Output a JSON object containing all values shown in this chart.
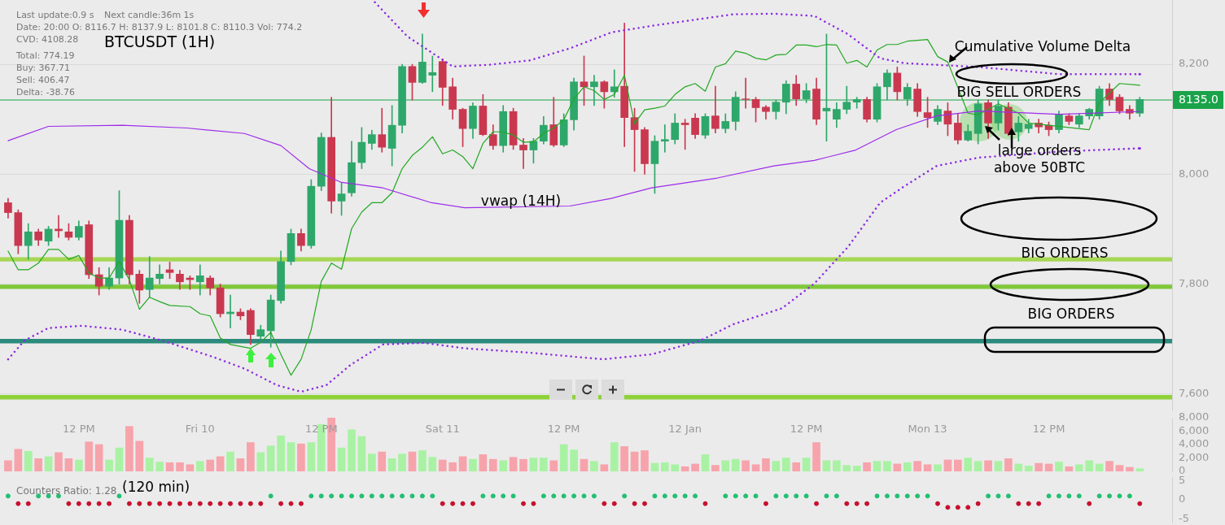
{
  "chart_data": [
    {
      "type": "candlestick",
      "title": "BTCUSDT (1H)",
      "x": [
        "--01-09T05:00",
        "--01-09T06:00",
        "--01-09T07:00",
        "--01-09T08:00",
        "--01-09T09:00",
        "--01-09T10:00",
        "--01-09T11:00",
        "--01-09T12:00",
        "--01-09T13:00",
        "--01-09T14:00",
        "--01-09T15:00",
        "--01-09T16:00",
        "--01-09T17:00",
        "--01-09T18:00",
        "--01-09T19:00",
        "--01-09T20:00",
        "--01-09T21:00",
        "--01-09T22:00",
        "--01-09T23:00",
        "--01-10T00:00",
        "--01-10T01:00",
        "--01-10T02:00",
        "--01-10T03:00",
        "--01-10T04:00",
        "--01-10T05:00",
        "--01-10T06:00",
        "--01-10T07:00",
        "--01-10T08:00",
        "--01-10T09:00",
        "--01-10T10:00",
        "--01-10T11:00",
        "--01-10T12:00",
        "--01-10T13:00",
        "--01-10T14:00",
        "--01-10T15:00",
        "--01-10T16:00",
        "--01-10T17:00",
        "--01-10T18:00",
        "--01-10T19:00",
        "--01-10T20:00",
        "--01-10T21:00",
        "--01-10T22:00",
        "--01-10T23:00",
        "--01-11T00:00",
        "--01-11T01:00",
        "--01-11T02:00",
        "--01-11T03:00",
        "--01-11T04:00",
        "--01-11T05:00",
        "--01-11T06:00",
        "--01-11T07:00",
        "--01-11T08:00",
        "--01-11T09:00",
        "--01-11T10:00",
        "--01-11T11:00",
        "--01-11T12:00",
        "--01-11T13:00",
        "--01-11T14:00",
        "--01-11T15:00",
        "--01-11T16:00",
        "--01-11T17:00",
        "--01-11T18:00",
        "--01-11T19:00",
        "--01-11T20:00",
        "--01-11T21:00",
        "--01-11T22:00",
        "--01-11T23:00",
        "--01-12T00:00",
        "--01-12T01:00",
        "--01-12T02:00",
        "--01-12T03:00",
        "--01-12T04:00",
        "--01-12T05:00",
        "--01-12T06:00",
        "--01-12T07:00",
        "--01-12T08:00",
        "--01-12T09:00",
        "--01-12T10:00",
        "--01-12T11:00",
        "--01-12T12:00",
        "--01-12T13:00",
        "--01-12T14:00",
        "--01-12T15:00",
        "--01-12T16:00",
        "--01-12T17:00",
        "--01-12T18:00",
        "--01-12T19:00",
        "--01-12T20:00",
        "--01-12T21:00",
        "--01-12T22:00",
        "--01-12T23:00",
        "--01-13T00:00",
        "--01-13T01:00",
        "--01-13T02:00",
        "--01-13T03:00",
        "--01-13T04:00",
        "--01-13T05:00",
        "--01-13T06:00",
        "--01-13T07:00",
        "--01-13T08:00",
        "--01-13T09:00",
        "--01-13T10:00",
        "--01-13T11:00",
        "--01-13T12:00",
        "--01-13T13:00",
        "--01-13T14:00",
        "--01-13T15:00",
        "--01-13T16:00",
        "--01-13T17:00",
        "--01-13T18:00",
        "--01-13T19:00",
        "--01-13T20:00",
        "--01-13T21:00"
      ],
      "ohlc": [
        [
          7948,
          7956,
          7920,
          7930
        ],
        [
          7930,
          7935,
          7855,
          7870
        ],
        [
          7870,
          7910,
          7845,
          7895
        ],
        [
          7895,
          7900,
          7870,
          7880
        ],
        [
          7878,
          7905,
          7870,
          7900
        ],
        [
          7900,
          7925,
          7885,
          7897
        ],
        [
          7895,
          7910,
          7880,
          7885
        ],
        [
          7885,
          7915,
          7880,
          7905
        ],
        [
          7908,
          7915,
          7810,
          7817
        ],
        [
          7817,
          7830,
          7780,
          7796
        ],
        [
          7796,
          7830,
          7790,
          7811
        ],
        [
          7811,
          7970,
          7800,
          7916
        ],
        [
          7916,
          7925,
          7800,
          7817
        ],
        [
          7818,
          7825,
          7765,
          7789
        ],
        [
          7790,
          7850,
          7775,
          7811
        ],
        [
          7810,
          7835,
          7800,
          7818
        ],
        [
          7826,
          7840,
          7810,
          7821
        ],
        [
          7818,
          7825,
          7790,
          7804
        ],
        [
          7811,
          7815,
          7790,
          7808
        ],
        [
          7804,
          7835,
          7780,
          7815
        ],
        [
          7811,
          7815,
          7780,
          7793
        ],
        [
          7793,
          7800,
          7740,
          7746
        ],
        [
          7746,
          7780,
          7720,
          7749
        ],
        [
          7749,
          7755,
          7735,
          7742
        ],
        [
          7752,
          7755,
          7690,
          7708
        ],
        [
          7705,
          7725,
          7700,
          7717
        ],
        [
          7715,
          7780,
          7685,
          7771
        ],
        [
          7770,
          7860,
          7765,
          7841
        ],
        [
          7841,
          7900,
          7835,
          7892
        ],
        [
          7892,
          7900,
          7860,
          7870
        ],
        [
          7870,
          7990,
          7865,
          7978
        ],
        [
          7978,
          8075,
          7970,
          8067
        ],
        [
          8067,
          8140,
          7929,
          7951
        ],
        [
          7951,
          7985,
          7925,
          7964
        ],
        [
          7966,
          8060,
          7960,
          8021
        ],
        [
          8021,
          8085,
          8010,
          8058
        ],
        [
          8056,
          8080,
          8045,
          8072
        ],
        [
          8072,
          8120,
          8040,
          8049
        ],
        [
          8047,
          8125,
          8015,
          8089
        ],
        [
          8089,
          8200,
          8075,
          8196
        ],
        [
          8196,
          8200,
          8135,
          8167
        ],
        [
          8167,
          8255,
          8165,
          8204
        ],
        [
          8180,
          8215,
          8150,
          8185
        ],
        [
          8205,
          8210,
          8125,
          8158
        ],
        [
          8159,
          8175,
          8100,
          8118
        ],
        [
          8118,
          8120,
          8050,
          8083
        ],
        [
          8083,
          8130,
          8065,
          8124
        ],
        [
          8124,
          8145,
          8070,
          8072
        ],
        [
          8072,
          8090,
          8045,
          8052
        ],
        [
          8052,
          8125,
          8040,
          8114
        ],
        [
          8114,
          8120,
          8045,
          8053
        ],
        [
          8053,
          8065,
          8010,
          8044
        ],
        [
          8044,
          8065,
          8020,
          8060
        ],
        [
          8060,
          8105,
          8055,
          8089
        ],
        [
          8090,
          8140,
          8050,
          8053
        ],
        [
          8053,
          8110,
          8050,
          8099
        ],
        [
          8099,
          8175,
          8080,
          8168
        ],
        [
          8168,
          8215,
          8125,
          8159
        ],
        [
          8159,
          8180,
          8125,
          8168
        ],
        [
          8168,
          8170,
          8120,
          8150
        ],
        [
          8150,
          8190,
          8140,
          8159
        ],
        [
          8160,
          8275,
          8050,
          8103
        ],
        [
          8103,
          8120,
          8005,
          8081
        ],
        [
          8081,
          8085,
          8000,
          8019
        ],
        [
          8019,
          8070,
          7965,
          8060
        ],
        [
          8060,
          8090,
          8040,
          8063
        ],
        [
          8063,
          8110,
          8055,
          8093
        ],
        [
          8093,
          8100,
          8045,
          8090
        ],
        [
          8102,
          8110,
          8065,
          8072
        ],
        [
          8071,
          8110,
          8065,
          8105
        ],
        [
          8106,
          8160,
          8075,
          8083
        ],
        [
          8083,
          8110,
          8075,
          8096
        ],
        [
          8096,
          8150,
          8080,
          8140
        ],
        [
          8137,
          8175,
          8120,
          8136
        ],
        [
          8136,
          8140,
          8095,
          8121
        ],
        [
          8122,
          8125,
          8100,
          8114
        ],
        [
          8114,
          8135,
          8100,
          8131
        ],
        [
          8131,
          8170,
          8110,
          8164
        ],
        [
          8164,
          8180,
          8125,
          8137
        ],
        [
          8137,
          8165,
          8130,
          8152
        ],
        [
          8155,
          8175,
          8090,
          8100
        ],
        [
          8115,
          8255,
          8060,
          8120
        ],
        [
          8100,
          8130,
          8085,
          8118
        ],
        [
          8118,
          8160,
          8110,
          8131
        ],
        [
          8131,
          8140,
          8120,
          8136
        ],
        [
          8136,
          8140,
          8095,
          8100
        ],
        [
          8100,
          8165,
          8095,
          8159
        ],
        [
          8159,
          8190,
          8135,
          8184
        ],
        [
          8184,
          8195,
          8135,
          8150
        ],
        [
          8137,
          8165,
          8125,
          8158
        ],
        [
          8155,
          8165,
          8105,
          8114
        ],
        [
          8112,
          8140,
          8085,
          8103
        ],
        [
          8096,
          8125,
          8090,
          8118
        ],
        [
          8115,
          8130,
          8070,
          8091
        ],
        [
          8093,
          8110,
          8055,
          8062
        ],
        [
          8062,
          8090,
          8060,
          8078
        ],
        [
          8074,
          8135,
          8055,
          8128
        ],
        [
          8130,
          8135,
          8065,
          8093
        ],
        [
          8093,
          8135,
          8080,
          8124
        ],
        [
          8122,
          8130,
          8070,
          8074
        ],
        [
          8077,
          8105,
          8060,
          8093
        ],
        [
          8083,
          8100,
          8075,
          8091
        ],
        [
          8093,
          8100,
          8075,
          8086
        ],
        [
          8089,
          8095,
          8070,
          8081
        ],
        [
          8081,
          8115,
          8075,
          8108
        ],
        [
          8106,
          8110,
          8090,
          8096
        ],
        [
          8091,
          8110,
          8085,
          8106
        ],
        [
          8106,
          8120,
          8100,
          8118
        ],
        [
          8106,
          8160,
          8100,
          8155
        ],
        [
          8155,
          8165,
          8125,
          8136
        ],
        [
          8140,
          8145,
          8110,
          8115
        ],
        [
          8118,
          8125,
          8100,
          8111
        ],
        [
          8111,
          8140,
          8105,
          8136
        ]
      ],
      "colors": [
        "#c9384f",
        "#c9384f",
        "#2ea76a",
        "#c9384f",
        "#2ea76a",
        "#c9384f",
        "#c9384f",
        "#2ea76a",
        "#c9384f",
        "#c9384f",
        "#2ea76a",
        "#2ea76a",
        "#c9384f",
        "#c9384f",
        "#2ea76a",
        "#2ea76a",
        "#c9384f",
        "#c9384f",
        "#c9384f",
        "#2ea76a",
        "#c9384f",
        "#c9384f",
        "#2ea76a",
        "#c9384f",
        "#c9384f",
        "#2ea76a",
        "#2ea76a",
        "#2ea76a",
        "#2ea76a",
        "#c9384f",
        "#2ea76a",
        "#2ea76a",
        "#c9384f",
        "#2ea76a",
        "#2ea76a",
        "#2ea76a",
        "#2ea76a",
        "#c9384f",
        "#2ea76a",
        "#2ea76a",
        "#c9384f",
        "#2ea76a",
        "#2ea76a",
        "#c9384f",
        "#c9384f",
        "#c9384f",
        "#2ea76a",
        "#c9384f",
        "#c9384f",
        "#2ea76a",
        "#c9384f",
        "#c9384f",
        "#2ea76a",
        "#2ea76a",
        "#c9384f",
        "#2ea76a",
        "#2ea76a",
        "#c9384f",
        "#2ea76a",
        "#c9384f",
        "#2ea76a",
        "#c9384f",
        "#c9384f",
        "#c9384f",
        "#2ea76a",
        "#2ea76a",
        "#2ea76a",
        "#c9384f",
        "#c9384f",
        "#2ea76a",
        "#c9384f",
        "#2ea76a",
        "#2ea76a",
        "#c9384f",
        "#c9384f",
        "#c9384f",
        "#2ea76a",
        "#2ea76a",
        "#c9384f",
        "#2ea76a",
        "#c9384f",
        "#2ea76a",
        "#2ea76a",
        "#2ea76a",
        "#2ea76a",
        "#c9384f",
        "#2ea76a",
        "#2ea76a",
        "#c9384f",
        "#2ea76a",
        "#c9384f",
        "#c9384f",
        "#2ea76a",
        "#c9384f",
        "#c9384f",
        "#2ea76a",
        "#2ea76a",
        "#c9384f",
        "#2ea76a",
        "#c9384f",
        "#2ea76a",
        "#2ea76a",
        "#c9384f",
        "#c9384f",
        "#2ea76a",
        "#c9384f",
        "#2ea76a",
        "#2ea76a",
        "#2ea76a",
        "#c9384f",
        "#c9384f",
        "#c9384f",
        "#2ea76a"
      ],
      "series": [
        {
          "type": "line",
          "color": "#9d2bea",
          "x": [
            "--01-09T05:00",
            "--01-09T09:00",
            "--01-09T16:18",
            "--01-09T22:42",
            "--01-10T04:24",
            "--01-10T08:00",
            "--01-10T10:48",
            "--01-10T14:00",
            "--01-10T18:06",
            "--01-10T22:54",
            "--01-11T02:12",
            "--01-11T12:36",
            "--01-11T16:42",
            "--01-11T20:42",
            "--01-12T03:12",
            "--01-12T08:48",
            "--01-12T12:48",
            "--01-12T16:54",
            "--01-12T20:54",
            "--01-13T00:54",
            "--01-13T05:00",
            "--01-13T13:00",
            "--01-13T21:00"
          ],
          "values": [
            8061,
            8087,
            8089,
            8084,
            8074,
            8052,
            8010,
            7985,
            7975,
            7948,
            7939,
            7942,
            7956,
            7975,
            7993,
            8015,
            8025,
            8044,
            8081,
            8106,
            8115,
            8109,
            8114
          ]
        },
        {
          "type": "line",
          "color": "#8a2be2",
          "line_style": "dotted",
          "x": [
            "--01-10T17:18",
            "--01-10T20:30",
            "--01-11T01:00",
            "--01-11T04:36",
            "--01-11T08:36",
            "--01-11T12:36",
            "--01-11T16:42",
            "--01-11T20:42",
            "--01-12T04:48",
            "--01-12T08:48",
            "--01-12T12:48",
            "--01-12T16:06",
            "--01-12T19:18",
            "--01-12T21:42",
            "--01-13T05:00",
            "--01-13T13:00",
            "--01-13T21:00"
          ],
          "values": [
            8313,
            8251,
            8196,
            8199,
            8207,
            8229,
            8258,
            8270,
            8291,
            8292,
            8288,
            8255,
            8211,
            8202,
            8195,
            8182,
            8182
          ]
        },
        {
          "type": "line",
          "color": "#8a2be2",
          "line_style": "dotted",
          "x": [
            "--01-09T05:00",
            "--01-09T06:36",
            "--01-09T09:00",
            "--01-09T12:18",
            "--01-09T16:18",
            "--01-09T20:18",
            "--01-10T01:12",
            "--01-10T04:24",
            "--01-10T07:36",
            "--01-10T10:00",
            "--01-10T12:30",
            "--01-10T14:54",
            "--01-10T18:06",
            "--01-10T22:06",
            "--01-11T02:12",
            "--01-11T08:36",
            "--01-11T15:54",
            "--01-11T20:42",
            "--01-12T01:30",
            "--01-12T04:48",
            "--01-12T09:36",
            "--01-12T12:48",
            "--01-12T16:06",
            "--01-12T19:18",
            "--01-12T21:42",
            "--01-13T00:54",
            "--01-13T05:00",
            "--01-13T13:00",
            "--01-13T21:00"
          ],
          "values": [
            7663,
            7697,
            7720,
            7724,
            7717,
            7697,
            7668,
            7646,
            7616,
            7604,
            7616,
            7653,
            7690,
            7693,
            7683,
            7675,
            7663,
            7672,
            7697,
            7727,
            7756,
            7801,
            7867,
            7948,
            7978,
            8015,
            8030,
            8041,
            8047
          ]
        },
        {
          "type": "line",
          "color": "#22a822",
          "x": [
            "--01-09T05:00",
            "--01-09T06:00",
            "--01-09T07:00",
            "--01-09T08:00",
            "--01-09T09:00",
            "--01-09T10:00",
            "--01-09T11:00",
            "--01-09T12:00",
            "--01-09T13:00",
            "--01-09T14:00",
            "--01-09T15:00",
            "--01-09T16:00",
            "--01-09T17:00",
            "--01-09T18:00",
            "--01-09T19:00",
            "--01-09T20:00",
            "--01-09T21:00",
            "--01-09T23:00",
            "--01-10T00:00",
            "--01-10T01:00",
            "--01-10T02:00",
            "--01-10T03:00",
            "--01-10T05:00",
            "--01-10T06:00",
            "--01-10T07:00",
            "--01-10T08:00",
            "--01-10T09:00",
            "--01-10T10:00",
            "--01-10T11:00",
            "--01-10T12:00",
            "--01-10T13:00",
            "--01-10T14:00",
            "--01-10T15:00",
            "--01-10T16:00",
            "--01-10T17:00",
            "--01-10T18:00",
            "--01-10T19:00",
            "--01-10T20:00",
            "--01-10T21:00",
            "--01-10T22:00",
            "--01-10T23:00",
            "--01-11T00:00",
            "--01-11T01:00",
            "--01-11T02:00",
            "--01-11T03:00",
            "--01-11T04:00",
            "--01-11T05:00",
            "--01-11T06:00",
            "--01-11T07:00",
            "--01-11T08:00",
            "--01-11T09:00",
            "--01-11T10:00",
            "--01-11T11:00",
            "--01-11T12:00",
            "--01-11T13:00",
            "--01-11T14:00",
            "--01-11T15:00",
            "--01-11T16:00",
            "--01-11T17:00",
            "--01-11T18:00",
            "--01-11T19:00",
            "--01-11T20:00",
            "--01-11T21:00",
            "--01-11T22:00",
            "--01-11T23:00",
            "--01-12T00:00",
            "--01-12T01:00",
            "--01-12T02:00",
            "--01-12T03:00",
            "--01-12T04:00",
            "--01-12T05:00",
            "--01-12T06:00",
            "--01-12T07:00",
            "--01-12T08:00",
            "--01-12T09:00",
            "--01-12T10:00",
            "--01-12T11:00",
            "--01-12T12:00",
            "--01-12T13:00",
            "--01-12T14:00",
            "--01-12T15:00",
            "--01-12T16:00",
            "--01-12T17:00",
            "--01-12T18:00",
            "--01-12T19:00",
            "--01-12T20:00",
            "--01-12T21:00",
            "--01-12T22:00",
            "--01-13T00:00",
            "--01-13T01:00",
            "--01-13T02:00",
            "--01-13T04:00",
            "--01-13T05:00",
            "--01-13T07:00",
            "--01-13T09:00",
            "--01-13T10:00",
            "--01-13T16:00",
            "--01-13T17:00",
            "--01-13T19:00",
            "--01-13T21:00"
          ],
          "values": [
            7860,
            7826,
            7826,
            7838,
            7863,
            7863,
            7845,
            7852,
            7820,
            7811,
            7811,
            7841,
            7808,
            7754,
            7776,
            7768,
            7761,
            7759,
            7746,
            7742,
            7702,
            7690,
            7683,
            7694,
            7712,
            7672,
            7634,
            7663,
            7717,
            7805,
            7838,
            7827,
            7901,
            7931,
            7948,
            7948,
            7966,
            8010,
            8034,
            8049,
            8068,
            8037,
            8044,
            8032,
            8010,
            8056,
            8077,
            8077,
            8071,
            8058,
            8059,
            8074,
            8084,
            8099,
            8137,
            8159,
            8152,
            8136,
            8145,
            8180,
            8092,
            8117,
            8120,
            8124,
            8145,
            8159,
            8165,
            8151,
            8195,
            8201,
            8224,
            8220,
            8211,
            8208,
            8217,
            8218,
            8235,
            8235,
            8232,
            8236,
            8235,
            8202,
            8207,
            8195,
            8226,
            8236,
            8236,
            8242,
            8245,
            8214,
            8204,
            8111,
            8108,
            8128,
            8111,
            8093,
            8081,
            8130,
            8165,
            8162
          ]
        }
      ],
      "xlim": [
        "--01-09T04:12",
        "--01-14T00:12"
      ],
      "xticks": [
        {
          "value": "--01-09T12:00",
          "label": "12 PM"
        },
        {
          "value": "--01-10T00:00",
          "label": "Fri 10"
        },
        {
          "value": "--01-10T12:00",
          "label": "12 PM"
        },
        {
          "value": "--01-11T00:00",
          "label": "Sat 11"
        },
        {
          "value": "--01-11T12:00",
          "label": "12 PM"
        },
        {
          "value": "--01-12T00:00",
          "label": "12 Jan"
        },
        {
          "value": "--01-12T12:00",
          "label": "12 PM"
        },
        {
          "value": "--01-13T00:00",
          "label": "Mon 13"
        },
        {
          "value": "--01-13T12:00",
          "label": "12 PM"
        }
      ],
      "ylim": [
        7570,
        8317
      ],
      "yticks": [
        {
          "value": 7600,
          "label": "7,600"
        },
        {
          "value": 7800,
          "label": "7,800"
        },
        {
          "value": 8000,
          "label": "8,000"
        },
        {
          "value": 8200,
          "label": "8,200"
        }
      ],
      "grid": "y",
      "ref_lines": [
        {
          "axis": "y",
          "value": 8135,
          "label": "8135.0",
          "color": "#1aa34a"
        }
      ],
      "bands": [
        {
          "axis": "y",
          "from": 7590,
          "to": 7598,
          "color": "#7fcc1a"
        },
        {
          "axis": "y",
          "from": 7692,
          "to": 7700,
          "color": "#0b7a6a"
        },
        {
          "axis": "y",
          "from": 7791,
          "to": 7799,
          "color": "#6cc21a"
        },
        {
          "axis": "y",
          "from": 7841,
          "to": 7849,
          "color": "#9ad43a"
        }
      ],
      "annotations": [
        "Last update:0.9 s",
        "Next candle:36m 1s",
        "Date: 20:00 O: 8116.7 H: 8137.9 L: 8101.8 C: 8110.3 Vol: 774.2",
        "CVD: 4108.28",
        "Total: 774.19",
        "Buy: 367.71",
        "Sell: 406.47",
        "Delta: -38.76",
        "vwap (14H)",
        "Cumulative Volume Delta",
        "BIG SELL ORDERS",
        "large orders\nabove 50BTC",
        "BIG ORDERS",
        "BIG ORDERS"
      ]
    },
    {
      "type": "bar",
      "x": [
        "--01-09T05:00",
        "--01-09T06:00",
        "--01-09T07:00",
        "--01-09T08:00",
        "--01-09T09:00",
        "--01-09T10:00",
        "--01-09T11:00",
        "--01-09T12:00",
        "--01-09T13:00",
        "--01-09T14:00",
        "--01-09T15:00",
        "--01-09T16:00",
        "--01-09T17:00",
        "--01-09T18:00",
        "--01-09T19:00",
        "--01-09T20:00",
        "--01-09T21:00",
        "--01-09T22:00",
        "--01-09T23:00",
        "--01-10T00:00",
        "--01-10T01:00",
        "--01-10T02:00",
        "--01-10T03:00",
        "--01-10T04:00",
        "--01-10T05:00",
        "--01-10T06:00",
        "--01-10T07:00",
        "--01-10T08:00",
        "--01-10T09:00",
        "--01-10T10:00",
        "--01-10T11:00",
        "--01-10T12:00",
        "--01-10T13:00",
        "--01-10T14:00",
        "--01-10T15:00",
        "--01-10T16:00",
        "--01-10T17:00",
        "--01-10T18:00",
        "--01-10T19:00",
        "--01-10T20:00",
        "--01-10T21:00",
        "--01-10T22:00",
        "--01-10T23:00",
        "--01-11T00:00",
        "--01-11T01:00",
        "--01-11T02:00",
        "--01-11T03:00",
        "--01-11T04:00",
        "--01-11T05:00",
        "--01-11T06:00",
        "--01-11T07:00",
        "--01-11T08:00",
        "--01-11T09:00",
        "--01-11T10:00",
        "--01-11T11:00",
        "--01-11T12:00",
        "--01-11T13:00",
        "--01-11T14:00",
        "--01-11T15:00",
        "--01-11T16:00",
        "--01-11T17:00",
        "--01-11T18:00",
        "--01-11T19:00",
        "--01-11T20:00",
        "--01-11T21:00",
        "--01-11T22:00",
        "--01-11T23:00",
        "--01-12T00:00",
        "--01-12T01:00",
        "--01-12T02:00",
        "--01-12T03:00",
        "--01-12T04:00",
        "--01-12T05:00",
        "--01-12T06:00",
        "--01-12T07:00",
        "--01-12T08:00",
        "--01-12T09:00",
        "--01-12T10:00",
        "--01-12T11:00",
        "--01-12T12:00",
        "--01-12T13:00",
        "--01-12T14:00",
        "--01-12T15:00",
        "--01-12T16:00",
        "--01-12T17:00",
        "--01-12T18:00",
        "--01-12T19:00",
        "--01-12T20:00",
        "--01-12T21:00",
        "--01-12T22:00",
        "--01-12T23:00",
        "--01-13T00:00",
        "--01-13T01:00",
        "--01-13T02:00",
        "--01-13T03:00",
        "--01-13T04:00",
        "--01-13T05:00",
        "--01-13T06:00",
        "--01-13T07:00",
        "--01-13T08:00",
        "--01-13T09:00",
        "--01-13T10:00",
        "--01-13T11:00",
        "--01-13T12:00",
        "--01-13T13:00",
        "--01-13T14:00",
        "--01-13T15:00",
        "--01-13T16:00",
        "--01-13T17:00",
        "--01-13T18:00",
        "--01-13T19:00",
        "--01-13T20:00",
        "--01-13T21:00"
      ],
      "values": [
        1600,
        3300,
        3000,
        1900,
        2200,
        2800,
        1900,
        1700,
        4400,
        4000,
        1700,
        3500,
        6700,
        4500,
        2000,
        1400,
        1300,
        1300,
        1000,
        1500,
        1700,
        2200,
        2900,
        1900,
        4300,
        2800,
        3800,
        5300,
        4300,
        4100,
        4300,
        7000,
        8000,
        3500,
        6200,
        5200,
        2600,
        2900,
        1900,
        2600,
        2900,
        3100,
        2100,
        1700,
        1300,
        2200,
        1800,
        2500,
        1800,
        1600,
        2100,
        1800,
        2000,
        2000,
        1600,
        4000,
        3200,
        1800,
        1500,
        1000,
        4300,
        3700,
        2900,
        3100,
        1200,
        1300,
        1000,
        700,
        1100,
        2500,
        900,
        1600,
        1800,
        1600,
        1000,
        1900,
        1500,
        2000,
        1300,
        2000,
        4300,
        1600,
        1600,
        900,
        800,
        1300,
        1500,
        1500,
        1100,
        1300,
        1500,
        1000,
        1000,
        1700,
        1700,
        2000,
        1500,
        1600,
        1500,
        1900,
        1100,
        800,
        1200,
        1100,
        1400,
        700,
        1000,
        1600,
        1100,
        1500,
        900,
        600,
        400
      ],
      "colors": [
        "#f7a3ab",
        "#f7a3ab",
        "#a9f2a4",
        "#f7a3ab",
        "#a9f2a4",
        "#f7a3ab",
        "#f7a3ab",
        "#a9f2a4",
        "#f7a3ab",
        "#f7a3ab",
        "#a9f2a4",
        "#a9f2a4",
        "#f7a3ab",
        "#f7a3ab",
        "#a9f2a4",
        "#a9f2a4",
        "#f7a3ab",
        "#f7a3ab",
        "#f7a3ab",
        "#a9f2a4",
        "#f7a3ab",
        "#f7a3ab",
        "#a9f2a4",
        "#f7a3ab",
        "#f7a3ab",
        "#a9f2a4",
        "#a9f2a4",
        "#a9f2a4",
        "#a9f2a4",
        "#f7a3ab",
        "#a9f2a4",
        "#a9f2a4",
        "#f7a3ab",
        "#a9f2a4",
        "#a9f2a4",
        "#a9f2a4",
        "#a9f2a4",
        "#f7a3ab",
        "#a9f2a4",
        "#a9f2a4",
        "#f7a3ab",
        "#a9f2a4",
        "#a9f2a4",
        "#f7a3ab",
        "#f7a3ab",
        "#f7a3ab",
        "#a9f2a4",
        "#f7a3ab",
        "#f7a3ab",
        "#a9f2a4",
        "#f7a3ab",
        "#f7a3ab",
        "#a9f2a4",
        "#a9f2a4",
        "#f7a3ab",
        "#a9f2a4",
        "#a9f2a4",
        "#f7a3ab",
        "#a9f2a4",
        "#f7a3ab",
        "#a9f2a4",
        "#f7a3ab",
        "#f7a3ab",
        "#f7a3ab",
        "#a9f2a4",
        "#a9f2a4",
        "#a9f2a4",
        "#f7a3ab",
        "#f7a3ab",
        "#a9f2a4",
        "#f7a3ab",
        "#a9f2a4",
        "#a9f2a4",
        "#f7a3ab",
        "#f7a3ab",
        "#f7a3ab",
        "#a9f2a4",
        "#a9f2a4",
        "#f7a3ab",
        "#a9f2a4",
        "#f7a3ab",
        "#a9f2a4",
        "#a9f2a4",
        "#a9f2a4",
        "#a9f2a4",
        "#f7a3ab",
        "#a9f2a4",
        "#a9f2a4",
        "#f7a3ab",
        "#a9f2a4",
        "#f7a3ab",
        "#f7a3ab",
        "#a9f2a4",
        "#f7a3ab",
        "#f7a3ab",
        "#a9f2a4",
        "#a9f2a4",
        "#f7a3ab",
        "#a9f2a4",
        "#f7a3ab",
        "#a9f2a4",
        "#a9f2a4",
        "#f7a3ab",
        "#f7a3ab",
        "#a9f2a4",
        "#f7a3ab",
        "#a9f2a4",
        "#a9f2a4",
        "#a9f2a4",
        "#f7a3ab",
        "#f7a3ab",
        "#f7a3ab",
        "#a9f2a4"
      ],
      "xlim": [
        "--01-09T04:12",
        "--01-14T00:12"
      ],
      "ylim": [
        0,
        8000
      ],
      "yticks": [
        0,
        {
          "value": 2000,
          "label": "2,000"
        },
        {
          "value": 4000,
          "label": "4,000"
        },
        {
          "value": 6000,
          "label": "6,000"
        },
        {
          "value": 8000,
          "label": "8,000"
        }
      ],
      "tick_labels": "y"
    },
    {
      "type": "scatter",
      "marker": "circle",
      "x": [
        "--01-09T05:00",
        "--01-09T06:00",
        "--01-09T07:00",
        "--01-09T08:00",
        "--01-09T09:00",
        "--01-09T10:00",
        "--01-09T11:00",
        "--01-09T12:00",
        "--01-09T13:00",
        "--01-09T14:00",
        "--01-09T15:00",
        "--01-09T16:00",
        "--01-09T17:00",
        "--01-09T18:00",
        "--01-09T19:00",
        "--01-09T20:00",
        "--01-09T21:00",
        "--01-09T22:00",
        "--01-09T23:00",
        "--01-10T00:00",
        "--01-10T01:00",
        "--01-10T02:00",
        "--01-10T03:00",
        "--01-10T04:00",
        "--01-10T05:00",
        "--01-10T06:00",
        "--01-10T07:00",
        "--01-10T08:00",
        "--01-10T09:00",
        "--01-10T10:00",
        "--01-10T11:00",
        "--01-10T12:00",
        "--01-10T13:00",
        "--01-10T14:00",
        "--01-10T15:00",
        "--01-10T16:00",
        "--01-10T17:00",
        "--01-10T18:00",
        "--01-10T19:00",
        "--01-10T20:00",
        "--01-10T21:00",
        "--01-10T22:00",
        "--01-10T23:00",
        "--01-11T00:00",
        "--01-11T01:00",
        "--01-11T02:00",
        "--01-11T03:00",
        "--01-11T04:00",
        "--01-11T05:00",
        "--01-11T06:00",
        "--01-11T07:00",
        "--01-11T08:00",
        "--01-11T09:00",
        "--01-11T10:00",
        "--01-11T11:00",
        "--01-11T12:00",
        "--01-11T13:00",
        "--01-11T14:00",
        "--01-11T15:00",
        "--01-11T16:00",
        "--01-11T17:00",
        "--01-11T18:00",
        "--01-11T19:00",
        "--01-11T20:00",
        "--01-11T21:00",
        "--01-11T22:00",
        "--01-11T23:00",
        "--01-12T00:00",
        "--01-12T01:00",
        "--01-12T02:00",
        "--01-12T03:00",
        "--01-12T04:00",
        "--01-12T05:00",
        "--01-12T06:00",
        "--01-12T07:00",
        "--01-12T08:00",
        "--01-12T09:00",
        "--01-12T10:00",
        "--01-12T11:00",
        "--01-12T12:00",
        "--01-12T13:00",
        "--01-12T14:00",
        "--01-12T15:00",
        "--01-12T16:00",
        "--01-12T17:00",
        "--01-12T18:00",
        "--01-12T19:00",
        "--01-12T20:00",
        "--01-12T21:00",
        "--01-12T22:00",
        "--01-12T23:00",
        "--01-13T00:00",
        "--01-13T01:00",
        "--01-13T02:00",
        "--01-13T03:00",
        "--01-13T04:00",
        "--01-13T05:00",
        "--01-13T06:00",
        "--01-13T07:00",
        "--01-13T08:00",
        "--01-13T09:00",
        "--01-13T10:00",
        "--01-13T11:00",
        "--01-13T12:00",
        "--01-13T13:00",
        "--01-13T14:00",
        "--01-13T15:00",
        "--01-13T16:00",
        "--01-13T17:00",
        "--01-13T18:00",
        "--01-13T19:00",
        "--01-13T20:00",
        "--01-13T21:00"
      ],
      "values": [
        1,
        -1,
        -1,
        1,
        1,
        1,
        -1,
        -1,
        -1,
        -1,
        -1,
        1,
        -1,
        -1,
        -1,
        -1,
        -1,
        -1,
        -1,
        -1,
        -1,
        -1,
        -1,
        -1,
        -1,
        -1,
        1,
        -1,
        -1,
        -1,
        1,
        1,
        1,
        1,
        1,
        1,
        1,
        1,
        1,
        1,
        1,
        1,
        1,
        -1,
        -1,
        -1,
        -1,
        1,
        1,
        1,
        1,
        -1,
        -1,
        1,
        1,
        1,
        1,
        1,
        1,
        -1,
        -1,
        1,
        -1,
        -1,
        1,
        1,
        1,
        1,
        1,
        -1,
        null,
        1,
        1,
        1,
        1,
        -1,
        1,
        1,
        1,
        1,
        -1,
        1,
        1,
        -1,
        -1,
        -1,
        1,
        1,
        1,
        1,
        1,
        1,
        -1,
        -2,
        -2,
        -2,
        -1,
        1,
        1,
        1,
        -1,
        -1,
        -1,
        1,
        1,
        1,
        1,
        -1,
        1,
        1,
        1,
        1,
        -1
      ],
      "colors": [
        "#21c073",
        "#c8102e",
        "#c8102e",
        "#21c073",
        "#21c073",
        "#21c073",
        "#c8102e",
        "#c8102e",
        "#c8102e",
        "#c8102e",
        "#c8102e",
        "#21c073",
        "#c8102e",
        "#c8102e",
        "#c8102e",
        "#c8102e",
        "#c8102e",
        "#c8102e",
        "#c8102e",
        "#c8102e",
        "#c8102e",
        "#c8102e",
        "#c8102e",
        "#c8102e",
        "#c8102e",
        "#c8102e",
        "#21c073",
        "#c8102e",
        "#c8102e",
        "#c8102e",
        "#21c073",
        "#21c073",
        "#21c073",
        "#21c073",
        "#21c073",
        "#21c073",
        "#21c073",
        "#21c073",
        "#21c073",
        "#21c073",
        "#21c073",
        "#21c073",
        "#21c073",
        "#c8102e",
        "#c8102e",
        "#c8102e",
        "#c8102e",
        "#21c073",
        "#21c073",
        "#21c073",
        "#21c073",
        "#c8102e",
        "#c8102e",
        "#21c073",
        "#21c073",
        "#21c073",
        "#21c073",
        "#21c073",
        "#21c073",
        "#c8102e",
        "#c8102e",
        "#21c073",
        "#c8102e",
        "#c8102e",
        "#21c073",
        "#21c073",
        "#21c073",
        "#21c073",
        "#21c073",
        "#c8102e",
        "#21c073",
        "#21c073",
        "#21c073",
        "#21c073",
        "#21c073",
        "#c8102e",
        "#21c073",
        "#21c073",
        "#21c073",
        "#21c073",
        "#c8102e",
        "#21c073",
        "#21c073",
        "#c8102e",
        "#c8102e",
        "#c8102e",
        "#21c073",
        "#21c073",
        "#21c073",
        "#21c073",
        "#21c073",
        "#21c073",
        "#c8102e",
        "#c8102e",
        "#c8102e",
        "#c8102e",
        "#c8102e",
        "#21c073",
        "#21c073",
        "#21c073",
        "#c8102e",
        "#c8102e",
        "#c8102e",
        "#21c073",
        "#21c073",
        "#21c073",
        "#21c073",
        "#c8102e",
        "#21c073",
        "#21c073",
        "#21c073",
        "#21c073",
        "#c8102e"
      ],
      "xlim": [
        "--01-09T04:12",
        "--01-14T00:12"
      ],
      "ylim": [
        -6,
        6
      ],
      "yticks": [
        -5,
        0,
        5
      ],
      "tick_labels": "y",
      "annotations": [
        "Counters Ratio: 1.28",
        "(120 min)"
      ]
    }
  ]
}
